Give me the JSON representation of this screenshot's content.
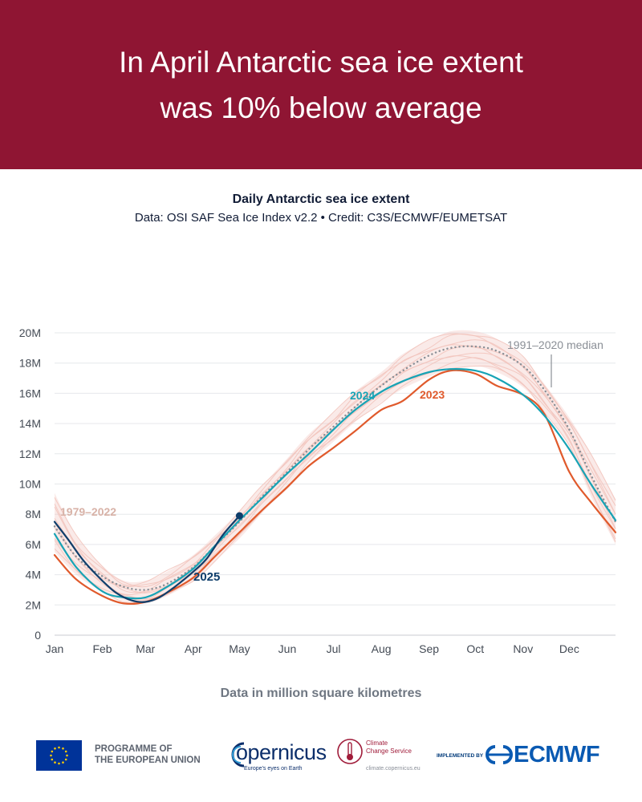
{
  "header": {
    "line1": "In April Antarctic sea ice extent",
    "line2": "was 10% below average",
    "background": "#8f1533"
  },
  "chart_data": {
    "type": "line",
    "title": "Daily Antarctic sea ice extent",
    "subtitle": "Data: OSI SAF Sea Ice Index v2.2 • Credit: C3S/ECMWF/EUMETSAT",
    "unit_note": "Data in million square kilometres",
    "x_axis": {
      "tick_labels": [
        "Jan",
        "Feb",
        "Mar",
        "Apr",
        "May",
        "Jun",
        "Jul",
        "Aug",
        "Sep",
        "Oct",
        "Nov",
        "Dec"
      ],
      "range": [
        "Jan 1",
        "Dec 31"
      ]
    },
    "y_axis": {
      "tick_labels": [
        "0",
        "2M",
        "4M",
        "6M",
        "8M",
        "10M",
        "12M",
        "14M",
        "16M",
        "18M",
        "20M"
      ],
      "range": [
        0,
        20
      ],
      "unit": "million km²"
    },
    "grid": true,
    "legend": "inline labels",
    "series": [
      {
        "name": "1979–2022",
        "style": "envelope of thin lines",
        "color": "#f2c4bd",
        "x": [
          "Jan 1",
          "Jan 15",
          "Feb 1",
          "Feb 15",
          "Mar 1",
          "Mar 15",
          "Apr 1",
          "Apr 15",
          "May 1",
          "May 15",
          "Jun 1",
          "Jun 15",
          "Jul 1",
          "Jul 15",
          "Aug 1",
          "Aug 15",
          "Sep 1",
          "Sep 15",
          "Oct 1",
          "Oct 15",
          "Nov 1",
          "Nov 15",
          "Dec 1",
          "Dec 15",
          "Dec 31"
        ],
        "lower": [
          5.5,
          4.0,
          2.9,
          2.3,
          2.1,
          2.6,
          3.6,
          4.9,
          6.4,
          8.0,
          9.8,
          11.4,
          12.8,
          14.1,
          15.4,
          16.3,
          17.1,
          17.6,
          17.8,
          17.4,
          16.4,
          14.8,
          12.5,
          9.2,
          6.0
        ],
        "upper": [
          9.4,
          6.6,
          4.6,
          3.6,
          3.6,
          4.2,
          5.3,
          6.6,
          8.2,
          9.8,
          11.7,
          13.3,
          14.7,
          16.1,
          17.4,
          18.6,
          19.5,
          20.1,
          20.1,
          19.6,
          18.4,
          16.6,
          14.4,
          12.0,
          9.0
        ]
      },
      {
        "name": "1991–2020 median",
        "style": "dotted",
        "color": "#8a8f96",
        "x": [
          "Jan 1",
          "Jan 15",
          "Feb 1",
          "Feb 15",
          "Mar 1",
          "Mar 15",
          "Apr 1",
          "Apr 15",
          "May 1",
          "May 15",
          "Jun 1",
          "Jun 15",
          "Jul 1",
          "Jul 15",
          "Aug 1",
          "Aug 15",
          "Sep 1",
          "Sep 15",
          "Oct 1",
          "Oct 15",
          "Nov 1",
          "Nov 15",
          "Dec 1",
          "Dec 15",
          "Dec 31"
        ],
        "values": [
          7.2,
          5.2,
          3.9,
          3.2,
          3.0,
          3.4,
          4.5,
          5.9,
          7.5,
          9.1,
          10.8,
          12.3,
          13.8,
          15.1,
          16.5,
          17.5,
          18.5,
          19.0,
          19.1,
          18.8,
          17.8,
          16.2,
          13.6,
          10.6,
          7.5
        ]
      },
      {
        "name": "2023",
        "color": "#e05a2c",
        "x": [
          "Jan 1",
          "Jan 15",
          "Feb 1",
          "Feb 15",
          "Mar 1",
          "Mar 15",
          "Apr 1",
          "Apr 15",
          "May 1",
          "May 15",
          "Jun 1",
          "Jun 15",
          "Jul 1",
          "Jul 15",
          "Aug 1",
          "Aug 15",
          "Sep 1",
          "Sep 15",
          "Oct 1",
          "Oct 15",
          "Nov 1",
          "Nov 15",
          "Dec 1",
          "Dec 15",
          "Dec 31"
        ],
        "values": [
          5.3,
          3.7,
          2.6,
          2.1,
          2.2,
          2.8,
          3.8,
          5.2,
          6.8,
          8.2,
          9.8,
          11.2,
          12.4,
          13.5,
          14.9,
          15.5,
          16.9,
          17.5,
          17.3,
          16.5,
          15.9,
          14.6,
          10.8,
          8.8,
          6.8
        ]
      },
      {
        "name": "2024",
        "color": "#17a3b5",
        "x": [
          "Jan 1",
          "Jan 15",
          "Feb 1",
          "Feb 15",
          "Mar 1",
          "Mar 15",
          "Apr 1",
          "Apr 15",
          "May 1",
          "May 15",
          "Jun 1",
          "Jun 15",
          "Jul 1",
          "Jul 15",
          "Aug 1",
          "Aug 15",
          "Sep 1",
          "Sep 15",
          "Oct 1",
          "Oct 15",
          "Nov 1",
          "Nov 15",
          "Dec 1",
          "Dec 15",
          "Dec 31"
        ],
        "values": [
          6.7,
          4.5,
          2.9,
          2.5,
          2.5,
          3.2,
          4.4,
          5.9,
          7.6,
          9.0,
          10.7,
          12.0,
          13.6,
          14.9,
          16.1,
          16.8,
          17.4,
          17.6,
          17.5,
          17.0,
          15.9,
          14.5,
          12.3,
          10.0,
          7.6
        ]
      },
      {
        "name": "2025",
        "color": "#0f3e6b",
        "x": [
          "Jan 1",
          "Jan 10",
          "Jan 20",
          "Feb 1",
          "Feb 10",
          "Feb 20",
          "Mar 1",
          "Mar 10",
          "Mar 20",
          "Apr 1",
          "Apr 10",
          "Apr 20",
          "May 1"
        ],
        "values": [
          7.5,
          6.3,
          4.9,
          3.6,
          2.8,
          2.3,
          2.2,
          2.5,
          3.2,
          4.2,
          5.1,
          6.6,
          7.9
        ]
      }
    ],
    "annotations": [
      {
        "text": "1979–2022",
        "color": "#d8b2a7"
      },
      {
        "text": "1991–2020 median",
        "color": "#8a8f96"
      },
      {
        "text": "2024",
        "color": "#17a3b5"
      },
      {
        "text": "2023",
        "color": "#e05a2c"
      },
      {
        "text": "2025",
        "color": "#0f3e6b"
      }
    ]
  },
  "footer": {
    "eu_line1": "PROGRAMME OF",
    "eu_line2": "THE EUROPEAN UNION",
    "copernicus": "opernicus",
    "copernicus_tagline": "Europe's eyes on Earth",
    "c3s_line1": "Climate",
    "c3s_line2": "Change Service",
    "c3s_url": "climate.copernicus.eu",
    "implemented_by": "IMPLEMENTED BY",
    "ecmwf": "ECMWF"
  }
}
